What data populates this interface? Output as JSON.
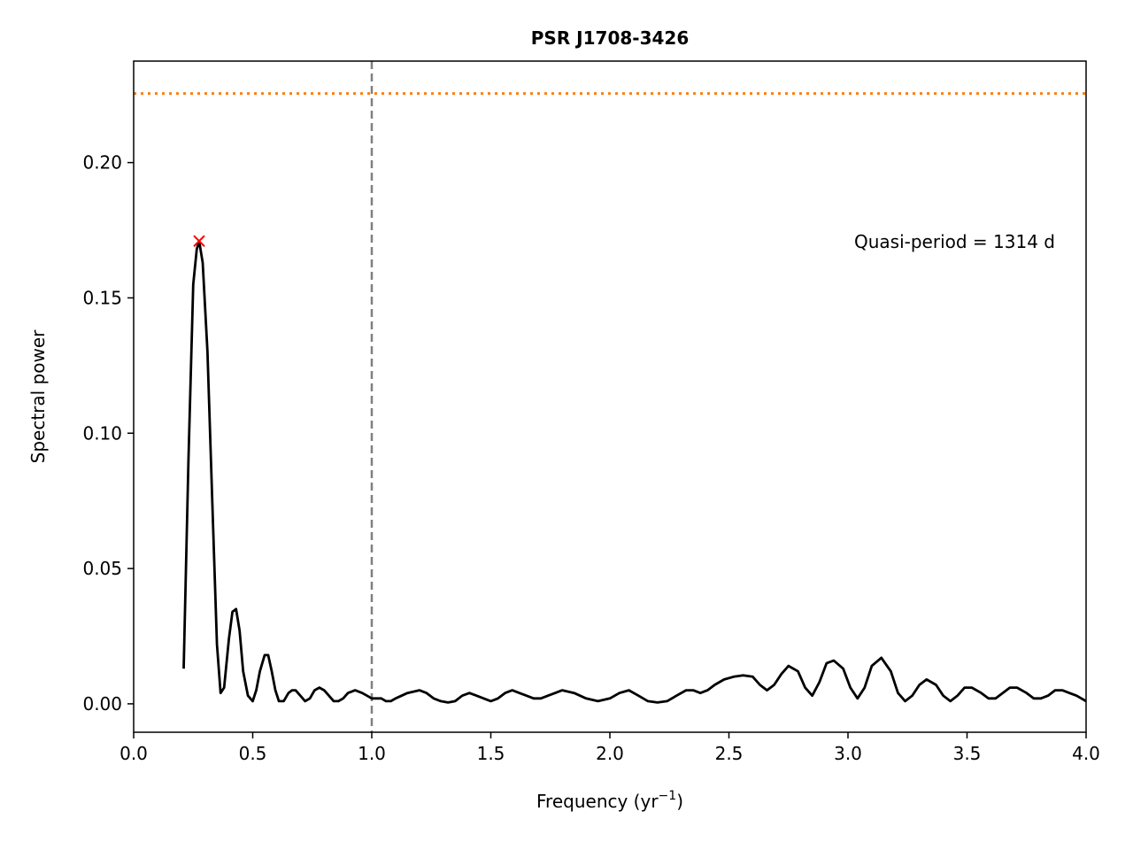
{
  "chart_data": {
    "type": "line",
    "title": "PSR J1708-3426",
    "xlabel_base": "Frequency (yr",
    "xlabel_sup": "−1",
    "xlabel_close": ")",
    "ylabel": "Spectral power",
    "xlim": [
      0.0,
      4.0
    ],
    "ylim": [
      -0.0105,
      0.2375
    ],
    "x_ticks": [
      0.0,
      0.5,
      1.0,
      1.5,
      2.0,
      2.5,
      3.0,
      3.5,
      4.0
    ],
    "x_tick_labels": [
      "0.0",
      "0.5",
      "1.0",
      "1.5",
      "2.0",
      "2.5",
      "3.0",
      "3.5",
      "4.0"
    ],
    "y_ticks": [
      0.0,
      0.05,
      0.1,
      0.15,
      0.2
    ],
    "y_tick_labels": [
      "0.00",
      "0.05",
      "0.10",
      "0.15",
      "0.20"
    ],
    "grid": false,
    "series": [
      {
        "color": "#000000",
        "style": "solid",
        "x": [
          0.21,
          0.23,
          0.25,
          0.265,
          0.275,
          0.29,
          0.31,
          0.33,
          0.35,
          0.365,
          0.38,
          0.4,
          0.415,
          0.43,
          0.445,
          0.46,
          0.48,
          0.5,
          0.515,
          0.53,
          0.55,
          0.565,
          0.58,
          0.595,
          0.61,
          0.63,
          0.65,
          0.665,
          0.68,
          0.7,
          0.72,
          0.74,
          0.76,
          0.78,
          0.8,
          0.82,
          0.84,
          0.86,
          0.88,
          0.9,
          0.93,
          0.96,
          0.98,
          1.0,
          1.02,
          1.04,
          1.06,
          1.08,
          1.1,
          1.15,
          1.2,
          1.23,
          1.26,
          1.29,
          1.32,
          1.35,
          1.38,
          1.41,
          1.44,
          1.47,
          1.5,
          1.53,
          1.56,
          1.59,
          1.62,
          1.65,
          1.68,
          1.71,
          1.74,
          1.77,
          1.8,
          1.85,
          1.9,
          1.95,
          2.0,
          2.04,
          2.08,
          2.12,
          2.16,
          2.2,
          2.24,
          2.28,
          2.32,
          2.35,
          2.38,
          2.41,
          2.44,
          2.48,
          2.52,
          2.56,
          2.6,
          2.63,
          2.66,
          2.69,
          2.72,
          2.75,
          2.79,
          2.82,
          2.85,
          2.88,
          2.91,
          2.94,
          2.98,
          3.01,
          3.04,
          3.07,
          3.1,
          3.14,
          3.18,
          3.21,
          3.24,
          3.27,
          3.3,
          3.33,
          3.37,
          3.4,
          3.43,
          3.46,
          3.49,
          3.52,
          3.56,
          3.59,
          3.62,
          3.65,
          3.68,
          3.71,
          3.75,
          3.78,
          3.81,
          3.84,
          3.87,
          3.9,
          3.93,
          3.96,
          4.0
        ],
        "y": [
          0.013,
          0.09,
          0.155,
          0.168,
          0.171,
          0.163,
          0.13,
          0.075,
          0.022,
          0.004,
          0.006,
          0.024,
          0.034,
          0.035,
          0.027,
          0.012,
          0.003,
          0.001,
          0.005,
          0.012,
          0.018,
          0.018,
          0.012,
          0.005,
          0.001,
          0.001,
          0.004,
          0.005,
          0.005,
          0.003,
          0.001,
          0.002,
          0.005,
          0.006,
          0.005,
          0.003,
          0.001,
          0.001,
          0.002,
          0.004,
          0.005,
          0.004,
          0.003,
          0.002,
          0.002,
          0.002,
          0.001,
          0.001,
          0.002,
          0.004,
          0.005,
          0.004,
          0.002,
          0.001,
          0.0005,
          0.001,
          0.003,
          0.004,
          0.003,
          0.002,
          0.001,
          0.002,
          0.004,
          0.005,
          0.004,
          0.003,
          0.002,
          0.002,
          0.003,
          0.004,
          0.005,
          0.004,
          0.002,
          0.001,
          0.002,
          0.004,
          0.005,
          0.003,
          0.001,
          0.0005,
          0.001,
          0.003,
          0.005,
          0.005,
          0.004,
          0.005,
          0.007,
          0.009,
          0.01,
          0.0105,
          0.01,
          0.007,
          0.005,
          0.007,
          0.011,
          0.014,
          0.012,
          0.006,
          0.003,
          0.008,
          0.015,
          0.016,
          0.013,
          0.006,
          0.002,
          0.006,
          0.014,
          0.017,
          0.012,
          0.004,
          0.001,
          0.003,
          0.007,
          0.009,
          0.007,
          0.003,
          0.001,
          0.003,
          0.006,
          0.006,
          0.004,
          0.002,
          0.002,
          0.004,
          0.006,
          0.006,
          0.004,
          0.002,
          0.002,
          0.003,
          0.005,
          0.005,
          0.004,
          0.003,
          0.001
        ]
      }
    ],
    "threshold_line": {
      "y": 0.2255,
      "color": "#ff7f0e",
      "style": "dotted"
    },
    "vertical_line": {
      "x": 1.0,
      "color": "#808080",
      "style": "dashed"
    },
    "peak_marker": {
      "x": 0.275,
      "y": 0.171,
      "color": "#ff0000",
      "marker": "x"
    },
    "annotation": "Quasi-period = 1314 d"
  }
}
